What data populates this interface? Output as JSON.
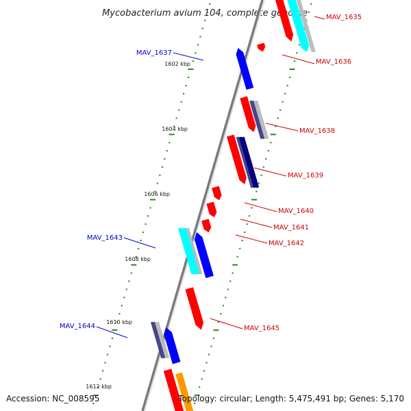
{
  "title": "Mycobacterium avium 104, complete genome",
  "footer": {
    "accession": "Accession: NC_008595",
    "topology": "Topology: circular; Length: 5,475,491 bp; Genes: 5,170"
  },
  "colors": {
    "backbone": "#7a7a7a",
    "tick": "#1e8a1e",
    "label_forward": "#0000cc",
    "label_reverse": "#cc0000",
    "red": "#ff0000",
    "blue": "#0000ff",
    "cyan": "#00ffff",
    "navy": "#000080",
    "slate": "#444488",
    "gray": "#bbbbbb",
    "orange": "#ff9900"
  },
  "ruler_labels": [
    "1602 kbp",
    "1604 kbp",
    "1606 kbp",
    "1608 kbp",
    "1610 kbp",
    "1612 kbp"
  ],
  "gene_labels": [
    {
      "name": "MAV_1635",
      "strand": "reverse"
    },
    {
      "name": "MAV_1636",
      "strand": "reverse"
    },
    {
      "name": "MAV_1637",
      "strand": "forward"
    },
    {
      "name": "MAV_1638",
      "strand": "reverse"
    },
    {
      "name": "MAV_1639",
      "strand": "reverse"
    },
    {
      "name": "MAV_1640",
      "strand": "reverse"
    },
    {
      "name": "MAV_1641",
      "strand": "reverse"
    },
    {
      "name": "MAV_1642",
      "strand": "reverse"
    },
    {
      "name": "MAV_1643",
      "strand": "forward"
    },
    {
      "name": "MAV_1644",
      "strand": "forward"
    },
    {
      "name": "MAV_1645",
      "strand": "reverse"
    }
  ],
  "features": [
    {
      "name": "MAV_1635",
      "color": "red",
      "strand": "reverse"
    },
    {
      "name": "MAV_1636",
      "color": "cyan",
      "strand": "reverse"
    },
    {
      "name": "MAV_1637",
      "color": "blue",
      "strand": "forward"
    },
    {
      "name": "MAV_1638",
      "color": "red",
      "strand": "reverse"
    },
    {
      "name": "MAV_1639",
      "color": "red",
      "strand": "reverse"
    },
    {
      "name": "MAV_1640",
      "color": "red",
      "strand": "reverse"
    },
    {
      "name": "MAV_1641",
      "color": "red",
      "strand": "reverse"
    },
    {
      "name": "MAV_1642",
      "color": "red",
      "strand": "reverse"
    },
    {
      "name": "MAV_1643",
      "color": "cyan",
      "strand": "forward"
    },
    {
      "name": "MAV_1644",
      "color": "slate",
      "strand": "forward"
    },
    {
      "name": "MAV_1645",
      "color": "red",
      "strand": "reverse"
    }
  ]
}
